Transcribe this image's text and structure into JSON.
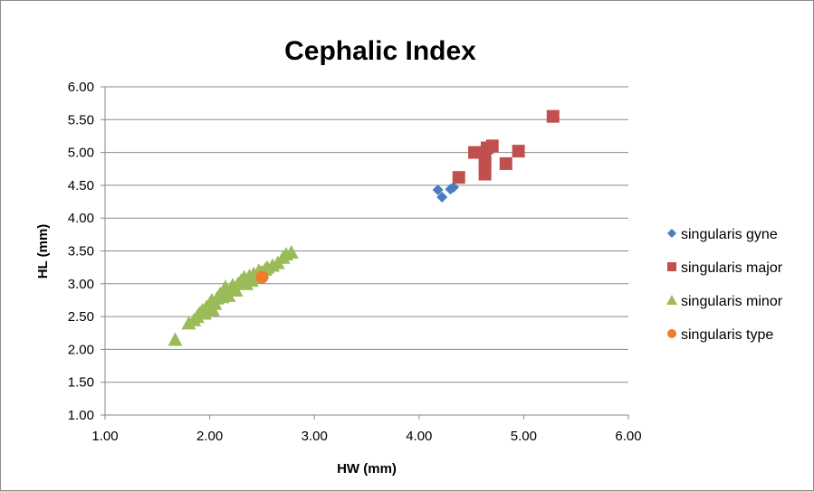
{
  "chart_data": {
    "type": "scatter",
    "title": "Cephalic Index",
    "xlabel": "HW (mm)",
    "ylabel": "HL (mm)",
    "xlim": [
      1.0,
      6.0
    ],
    "ylim": [
      1.0,
      6.0
    ],
    "x_ticks": [
      "1.00",
      "2.00",
      "3.00",
      "4.00",
      "5.00",
      "6.00"
    ],
    "y_ticks": [
      "1.00",
      "1.50",
      "2.00",
      "2.50",
      "3.00",
      "3.50",
      "4.00",
      "4.50",
      "5.00",
      "5.50",
      "6.00"
    ],
    "grid": "horizontal",
    "legend_position": "right",
    "series": [
      {
        "name": "singularis gyne",
        "marker": "diamond",
        "color": "#4a7dc0",
        "points": [
          [
            4.18,
            4.43
          ],
          [
            4.22,
            4.32
          ],
          [
            4.3,
            4.44
          ],
          [
            4.33,
            4.47
          ]
        ]
      },
      {
        "name": "singularis major",
        "marker": "square",
        "color": "#c0504d",
        "points": [
          [
            4.38,
            4.62
          ],
          [
            4.53,
            5.0
          ],
          [
            4.63,
            4.67
          ],
          [
            4.63,
            4.82
          ],
          [
            4.63,
            4.9
          ],
          [
            4.65,
            5.07
          ],
          [
            4.7,
            5.1
          ],
          [
            4.83,
            4.83
          ],
          [
            4.95,
            5.02
          ],
          [
            5.28,
            5.55
          ]
        ]
      },
      {
        "name": "singularis minor",
        "marker": "triangle",
        "color": "#9bbb59",
        "points": [
          [
            1.67,
            2.15
          ],
          [
            1.8,
            2.4
          ],
          [
            1.85,
            2.45
          ],
          [
            1.88,
            2.5
          ],
          [
            1.9,
            2.55
          ],
          [
            1.93,
            2.6
          ],
          [
            1.95,
            2.55
          ],
          [
            1.97,
            2.65
          ],
          [
            2.0,
            2.7
          ],
          [
            2.02,
            2.75
          ],
          [
            2.03,
            2.6
          ],
          [
            2.05,
            2.7
          ],
          [
            2.07,
            2.78
          ],
          [
            2.1,
            2.85
          ],
          [
            2.12,
            2.8
          ],
          [
            2.15,
            2.88
          ],
          [
            2.15,
            2.95
          ],
          [
            2.18,
            2.82
          ],
          [
            2.2,
            2.92
          ],
          [
            2.22,
            2.98
          ],
          [
            2.25,
            2.9
          ],
          [
            2.27,
            3.0
          ],
          [
            2.3,
            3.05
          ],
          [
            2.33,
            3.1
          ],
          [
            2.35,
            3.0
          ],
          [
            2.38,
            3.12
          ],
          [
            2.4,
            3.05
          ],
          [
            2.42,
            3.15
          ],
          [
            2.45,
            3.1
          ],
          [
            2.47,
            3.2
          ],
          [
            2.5,
            3.18
          ],
          [
            2.53,
            3.22
          ],
          [
            2.55,
            3.25
          ],
          [
            2.6,
            3.28
          ],
          [
            2.65,
            3.32
          ],
          [
            2.7,
            3.4
          ],
          [
            2.73,
            3.45
          ],
          [
            2.78,
            3.48
          ]
        ]
      },
      {
        "name": "singularis type",
        "marker": "circle",
        "color": "#f07c2c",
        "points": [
          [
            2.5,
            3.1
          ]
        ]
      }
    ]
  }
}
